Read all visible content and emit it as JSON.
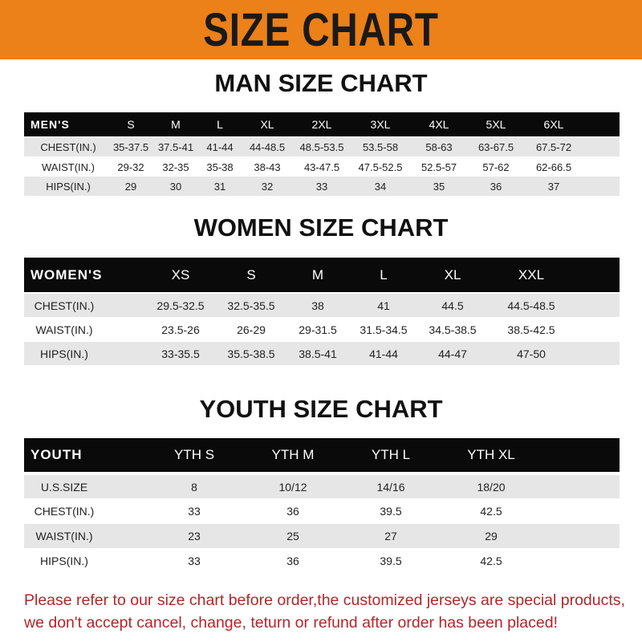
{
  "banner": {
    "title": "SIZE CHART",
    "color": "#ec8019"
  },
  "men": {
    "title": "MAN SIZE CHART",
    "header": [
      "MEN'S",
      "S",
      "M",
      "L",
      "XL",
      "2XL",
      "3XL",
      "4XL",
      "5XL",
      "6XL"
    ],
    "rows": [
      [
        "CHEST(IN.)",
        "35-37.5",
        "37.5-41",
        "41-44",
        "44-48.5",
        "48.5-53.5",
        "53.5-58",
        "58-63",
        "63-67.5",
        "67.5-72"
      ],
      [
        "WAIST(IN.)",
        "29-32",
        "32-35",
        "35-38",
        "38-43",
        "43-47.5",
        "47.5-52.5",
        "52.5-57",
        "57-62",
        "62-66.5"
      ],
      [
        "HIPS(IN.)",
        "29",
        "30",
        "31",
        "32",
        "33",
        "34",
        "35",
        "36",
        "37"
      ]
    ]
  },
  "women": {
    "title": "WOMEN SIZE CHART",
    "header": [
      "WOMEN'S",
      "XS",
      "S",
      "M",
      "L",
      "XL",
      "XXL"
    ],
    "rows": [
      [
        "CHEST(IN.)",
        "29.5-32.5",
        "32.5-35.5",
        "38",
        "41",
        "44.5",
        "44.5-48.5"
      ],
      [
        "WAIST(IN.)",
        "23.5-26",
        "26-29",
        "29-31.5",
        "31.5-34.5",
        "34.5-38.5",
        "38.5-42.5"
      ],
      [
        "HIPS(IN.)",
        "33-35.5",
        "35.5-38.5",
        "38.5-41",
        "41-44",
        "44-47",
        "47-50"
      ]
    ]
  },
  "youth": {
    "title": "YOUTH SIZE CHART",
    "header": [
      "YOUTH",
      "YTH S",
      "YTH M",
      "YTH L",
      "YTH XL"
    ],
    "rows": [
      [
        "U.S.SIZE",
        "8",
        "10/12",
        "14/16",
        "18/20"
      ],
      [
        "CHEST(IN.)",
        "33",
        "36",
        "39.5",
        "42.5"
      ],
      [
        "WAIST(IN.)",
        "23",
        "25",
        "27",
        "29"
      ],
      [
        "HIPS(IN.)",
        "33",
        "36",
        "39.5",
        "42.5"
      ]
    ]
  },
  "notice": {
    "line1": "Please refer to our size chart before order,the customized jerseys are special products,",
    "line2": "we don't accept cancel, change, teturn or refund after order has been placed!",
    "color": "#b3262a"
  }
}
